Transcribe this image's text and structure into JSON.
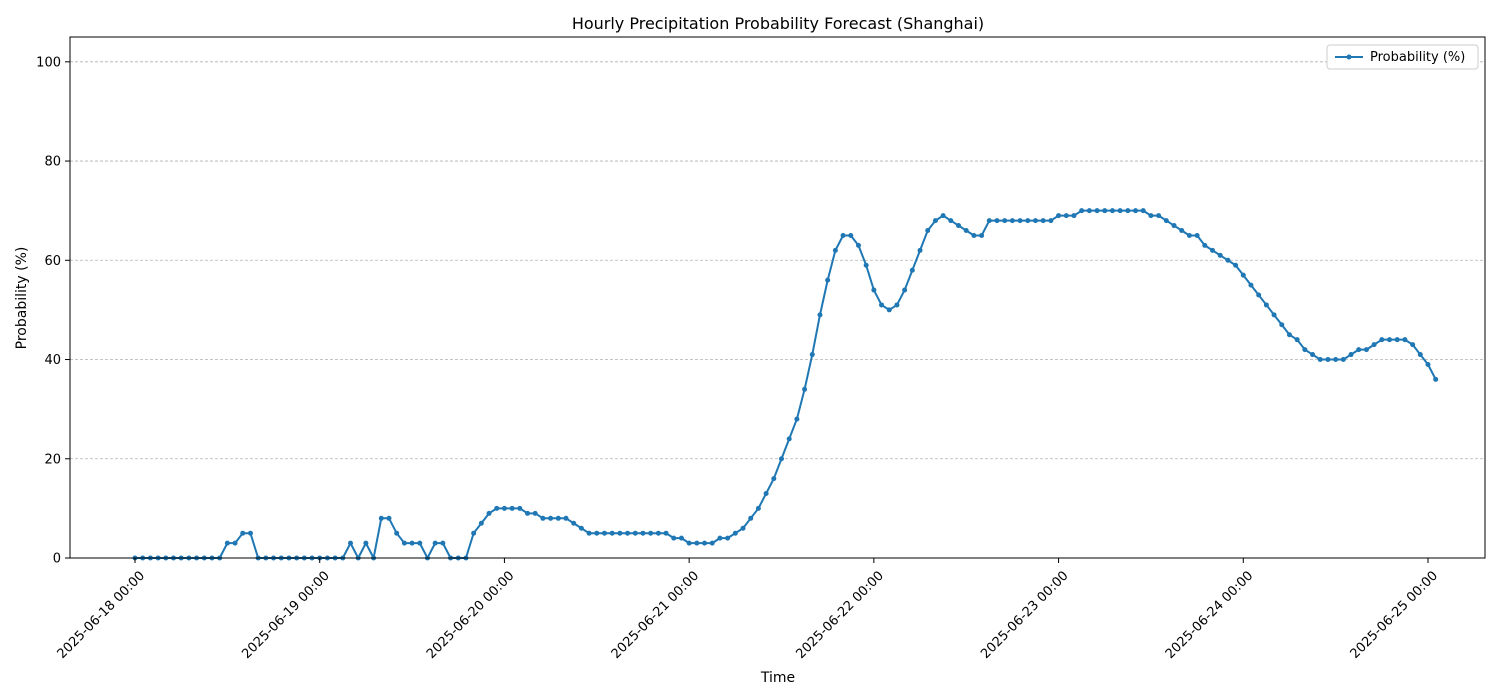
{
  "chart_data": {
    "type": "line",
    "title": "Hourly Precipitation Probability Forecast (Shanghai)",
    "xlabel": "Time",
    "ylabel": "Probability (%)",
    "ylim": [
      0,
      105
    ],
    "y_ticks": [
      0,
      20,
      40,
      60,
      80,
      100
    ],
    "grid": "horizontal dashed",
    "legend_position": "top-right",
    "color": "#1f77b4",
    "x_ticks": [
      {
        "hour": 0,
        "label": "2025-06-18 00:00"
      },
      {
        "hour": 24,
        "label": "2025-06-19 00:00"
      },
      {
        "hour": 48,
        "label": "2025-06-20 00:00"
      },
      {
        "hour": 72,
        "label": "2025-06-21 00:00"
      },
      {
        "hour": 96,
        "label": "2025-06-22 00:00"
      },
      {
        "hour": 120,
        "label": "2025-06-23 00:00"
      },
      {
        "hour": 144,
        "label": "2025-06-24 00:00"
      },
      {
        "hour": 168,
        "label": "2025-06-25 00:00"
      }
    ],
    "series": [
      {
        "name": "Probability (%)",
        "start": "2025-06-18 00:00",
        "interval": "1 hour",
        "values": [
          0,
          0,
          0,
          0,
          0,
          0,
          0,
          0,
          0,
          0,
          0,
          0,
          3,
          3,
          5,
          5,
          0,
          0,
          0,
          0,
          0,
          0,
          0,
          0,
          0,
          0,
          0,
          0,
          3,
          0,
          3,
          0,
          8,
          8,
          5,
          3,
          3,
          3,
          0,
          3,
          3,
          0,
          0,
          0,
          5,
          7,
          9,
          10,
          10,
          10,
          10,
          9,
          9,
          8,
          8,
          8,
          8,
          7,
          6,
          5,
          5,
          5,
          5,
          5,
          5,
          5,
          5,
          5,
          5,
          5,
          4,
          4,
          3,
          3,
          3,
          3,
          4,
          4,
          5,
          6,
          8,
          10,
          13,
          16,
          20,
          24,
          28,
          34,
          41,
          49,
          56,
          62,
          65,
          65,
          63,
          59,
          54,
          51,
          50,
          51,
          54,
          58,
          62,
          66,
          68,
          69,
          68,
          67,
          66,
          65,
          65,
          68,
          68,
          68,
          68,
          68,
          68,
          68,
          68,
          68,
          69,
          69,
          69,
          70,
          70,
          70,
          70,
          70,
          70,
          70,
          70,
          70,
          69,
          69,
          68,
          67,
          66,
          65,
          65,
          63,
          62,
          61,
          60,
          59,
          57,
          55,
          53,
          51,
          49,
          47,
          45,
          44,
          42,
          41,
          40,
          40,
          40,
          40,
          41,
          42,
          42,
          43,
          44,
          44,
          44,
          44,
          43,
          41,
          39,
          36
        ]
      }
    ]
  }
}
